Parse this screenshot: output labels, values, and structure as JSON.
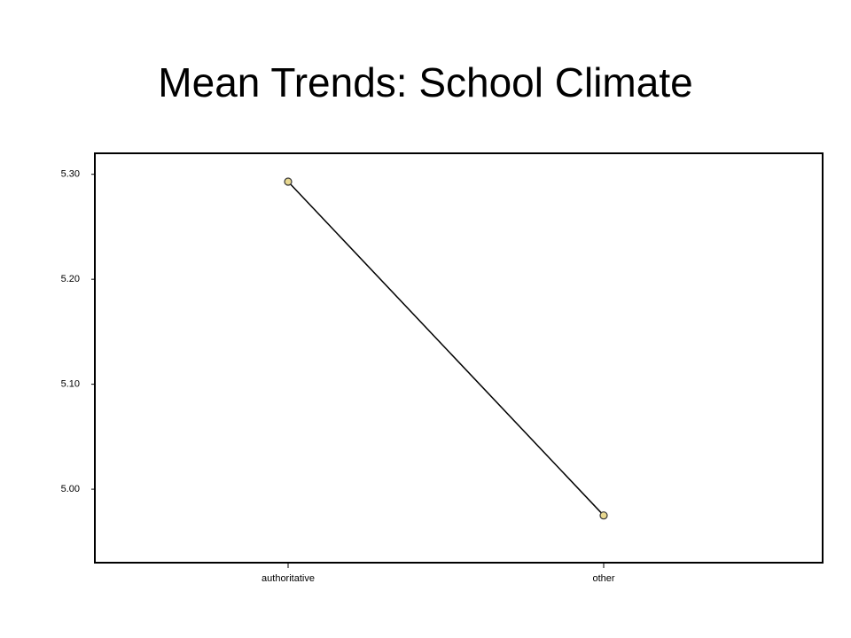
{
  "chart_data": {
    "type": "line",
    "title": "Mean Trends: School Climate",
    "categories": [
      "authoritative",
      "other"
    ],
    "values": [
      5.293,
      4.975
    ],
    "color": "#000000",
    "marker_color": "#e8d890",
    "ylim": [
      4.93,
      5.32
    ],
    "yticks": [
      {
        "value": 5.0,
        "label": "5.00"
      },
      {
        "value": 5.1,
        "label": "5.10"
      },
      {
        "value": 5.2,
        "label": "5.20"
      },
      {
        "value": 5.3,
        "label": "5.30"
      }
    ],
    "grid": false
  }
}
